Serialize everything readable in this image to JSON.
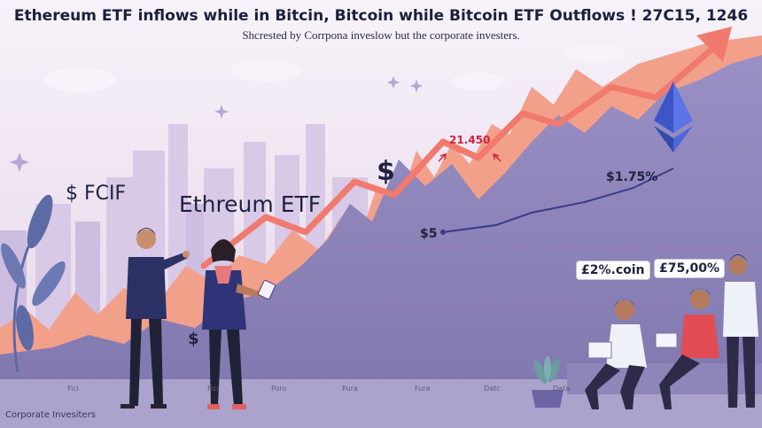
{
  "header": {
    "title": "Ethereum ETF inflows while in Bitcin, Bitcoin while Bitcoin ETF Outflows ! 27C15, 1246",
    "subtitle": "Shcrested by Corrpona inveslow but the corporate investers."
  },
  "labels": {
    "left_label": "$ FCIF",
    "eth_etf_label": "Ethreum ETF",
    "peak_value": "21.450",
    "dollar_sign_mid": "$",
    "dollar_sign_low": "$",
    "dollar_five": "$5",
    "right_value": "$1.75%",
    "callout_1": "£2%.coin",
    "callout_2": "£75,00%"
  },
  "x_ticks": [
    "Fici",
    "Fici",
    "Poro",
    "Pura",
    "Fura",
    "Datc",
    "Data"
  ],
  "footer": {
    "text": "Corporate Invesiters"
  },
  "colors": {
    "sky": "#efe6f2",
    "salmon": "#f3a08b",
    "arrow": "#f07a6e",
    "purple_area": "#8c82b6",
    "navy_line": "#3a3c8a",
    "ethereum": "#4f67d9",
    "ground": "#aba3cc",
    "accent_red": "#d0223a"
  },
  "icons": [
    "ethereum-logo-icon",
    "sparkle-icon",
    "up-arrow-icon",
    "plant-icon",
    "cloud-icon"
  ]
}
